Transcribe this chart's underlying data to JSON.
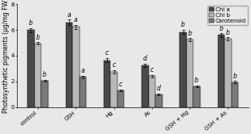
{
  "categories": [
    "control",
    "GSH",
    "Hg",
    "As",
    "GSH + Hg",
    "GSH + As"
  ],
  "series": {
    "Chl a": [
      6.0,
      6.6,
      3.65,
      3.25,
      5.85,
      5.6
    ],
    "Chl b": [
      4.95,
      6.25,
      2.75,
      2.4,
      5.25,
      5.3
    ],
    "Carotenoid": [
      2.05,
      2.35,
      1.3,
      1.0,
      1.6,
      1.95
    ]
  },
  "errors": {
    "Chl a": [
      0.15,
      0.2,
      0.18,
      0.15,
      0.18,
      0.15
    ],
    "Chl b": [
      0.1,
      0.15,
      0.12,
      0.12,
      0.12,
      0.12
    ],
    "Carotenoid": [
      0.08,
      0.1,
      0.08,
      0.07,
      0.08,
      0.08
    ]
  },
  "letters": {
    "Chl a": [
      "b",
      "a",
      "c",
      "d",
      "b",
      "b"
    ],
    "Chl b": [
      "b",
      "a",
      "c",
      "c",
      "b",
      "b"
    ],
    "Carotenoid": [
      "b",
      "a",
      "c",
      "d",
      "b",
      "b"
    ]
  },
  "colors": {
    "Chl a": "#4a4a4a",
    "Chl b": "#b8b8b8",
    "Carotenoid": "#7a7a7a"
  },
  "bg_color": "#e8e8e8",
  "ylabel": "Photosynthetic pigments (μg/mg FW)",
  "ylim": [
    0,
    8
  ],
  "yticks": [
    0,
    2,
    4,
    6,
    8
  ],
  "bar_width": 0.18,
  "legend_loc": "upper right",
  "tick_label_fontsize": 5.0,
  "axis_label_fontsize": 5.5,
  "legend_fontsize": 5.0,
  "letter_fontsize": 5.5,
  "error_capsize": 1.2,
  "error_linewidth": 0.5
}
